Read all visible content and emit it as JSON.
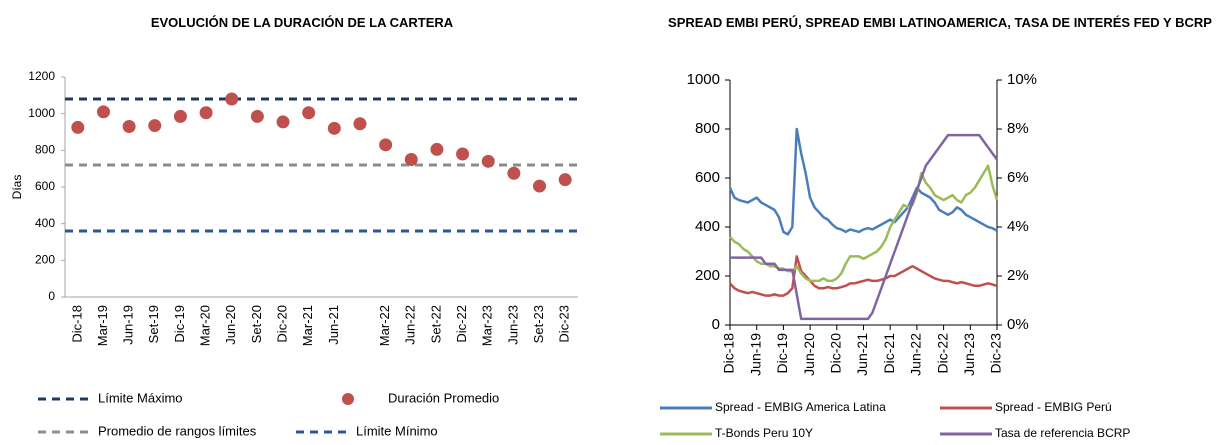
{
  "chart_data": [
    {
      "type": "scatter",
      "title": "EVOLUCIÓN DE LA DURACIÓN DE LA CARTERA",
      "y_label": "Días",
      "categories": [
        "Dic-18",
        "Mar-19",
        "Jun-19",
        "Set-19",
        "Dic-19",
        "Mar-20",
        "Jun-20",
        "Set-20",
        "Dic-20",
        "Mar-21",
        "Jun-21",
        null,
        "Mar-22",
        "Jun-22",
        "Set-22",
        "Dic-22",
        "Mar-23",
        "Jun-23",
        "Set-23",
        "Dic-23"
      ],
      "series": [
        {
          "name": "Duración Promedio",
          "color": "#c0504d",
          "values": [
            925,
            1010,
            930,
            935,
            985,
            1005,
            1080,
            985,
            955,
            1005,
            920,
            945,
            830,
            750,
            805,
            780,
            740,
            675,
            605,
            640
          ]
        }
      ],
      "reference_lines": [
        {
          "name": "Límite Máximo",
          "value": 1080,
          "color": "#1f3864"
        },
        {
          "name": "Promedio de rangos límites",
          "value": 720,
          "color": "#8c8c8c"
        },
        {
          "name": "Límite Mínimo",
          "value": 360,
          "color": "#2e5597"
        }
      ],
      "ylim": [
        0,
        1200
      ],
      "yticks": [
        0,
        200,
        400,
        600,
        800,
        1000,
        1200
      ],
      "grid": false
    },
    {
      "type": "line",
      "title": "SPREAD EMBI PERÚ, SPREAD EMBI LATINOAMERICA, TASA DE INTERÉS FED Y BCRP",
      "categories": [
        "Dic-18",
        null,
        null,
        null,
        null,
        null,
        "Jun-19",
        null,
        null,
        null,
        null,
        null,
        "Dic-19",
        null,
        null,
        null,
        null,
        null,
        "Jun-20",
        null,
        null,
        null,
        null,
        null,
        "Dic-20",
        null,
        null,
        null,
        null,
        null,
        "Jun-21",
        null,
        null,
        null,
        null,
        null,
        "Dic-21",
        null,
        null,
        null,
        null,
        null,
        "Jun-22",
        null,
        null,
        null,
        null,
        null,
        "Dic-22",
        null,
        null,
        null,
        null,
        null,
        "Jun-23",
        null,
        null,
        null,
        null,
        null,
        "Dic-23"
      ],
      "series": [
        {
          "name": "Spread - EMBIG America Latina",
          "color": "#4a7ebb",
          "values": [
            560,
            520,
            510,
            505,
            500,
            510,
            520,
            500,
            490,
            480,
            470,
            440,
            380,
            370,
            400,
            800,
            700,
            620,
            520,
            480,
            460,
            440,
            430,
            410,
            395,
            390,
            380,
            390,
            385,
            380,
            390,
            395,
            390,
            400,
            410,
            420,
            430,
            420,
            440,
            460,
            480,
            520,
            560,
            540,
            530,
            520,
            500,
            470,
            460,
            450,
            460,
            480,
            470,
            450,
            440,
            430,
            420,
            410,
            400,
            395,
            385
          ]
        },
        {
          "name": "Spread - EMBIG Perú",
          "color": "#c0504d",
          "values": [
            170,
            150,
            140,
            135,
            130,
            135,
            130,
            125,
            120,
            120,
            125,
            120,
            120,
            130,
            150,
            280,
            220,
            200,
            180,
            160,
            150,
            150,
            155,
            150,
            150,
            155,
            160,
            170,
            170,
            175,
            180,
            185,
            180,
            180,
            185,
            190,
            200,
            200,
            210,
            220,
            230,
            240,
            230,
            220,
            210,
            200,
            190,
            185,
            180,
            180,
            175,
            170,
            175,
            170,
            165,
            160,
            160,
            165,
            170,
            165,
            160
          ]
        },
        {
          "name": "T-Bonds Peru 10Y",
          "color": "#9bbb59",
          "axis": "y2",
          "values": [
            3.6,
            3.4,
            3.3,
            3.1,
            3.0,
            2.8,
            2.6,
            2.5,
            2.5,
            2.4,
            2.4,
            2.3,
            2.3,
            2.2,
            2.2,
            2.4,
            2.1,
            1.9,
            1.8,
            1.8,
            1.8,
            1.9,
            1.8,
            1.8,
            1.9,
            2.1,
            2.5,
            2.8,
            2.8,
            2.8,
            2.7,
            2.8,
            2.9,
            3.0,
            3.2,
            3.5,
            4.0,
            4.3,
            4.6,
            4.9,
            4.8,
            4.9,
            5.4,
            6.2,
            5.8,
            5.6,
            5.3,
            5.2,
            5.1,
            5.2,
            5.3,
            5.1,
            5.0,
            5.3,
            5.4,
            5.6,
            5.9,
            6.2,
            6.5,
            5.7,
            5.1
          ]
        },
        {
          "name": "Tasa de referencia BCRP",
          "color": "#8064a2",
          "axis": "y2",
          "values": [
            2.75,
            2.75,
            2.75,
            2.75,
            2.75,
            2.75,
            2.75,
            2.75,
            2.5,
            2.5,
            2.5,
            2.25,
            2.25,
            2.25,
            2.25,
            1.25,
            0.25,
            0.25,
            0.25,
            0.25,
            0.25,
            0.25,
            0.25,
            0.25,
            0.25,
            0.25,
            0.25,
            0.25,
            0.25,
            0.25,
            0.25,
            0.25,
            0.5,
            1.0,
            1.5,
            2.0,
            2.5,
            3.0,
            3.5,
            4.0,
            4.5,
            5.0,
            5.5,
            6.0,
            6.5,
            6.75,
            7.0,
            7.25,
            7.5,
            7.75,
            7.75,
            7.75,
            7.75,
            7.75,
            7.75,
            7.75,
            7.75,
            7.5,
            7.25,
            7.0,
            6.75
          ]
        }
      ],
      "ylim": [
        0,
        1000
      ],
      "yticks": [
        0,
        200,
        400,
        600,
        800,
        1000
      ],
      "y2lim": [
        0,
        10
      ],
      "y2ticks": [
        {
          "value": 0,
          "label": "0%"
        },
        {
          "value": 2,
          "label": "2%"
        },
        {
          "value": 4,
          "label": "4%"
        },
        {
          "value": 6,
          "label": "6%"
        },
        {
          "value": 8,
          "label": "8%"
        },
        {
          "value": 10,
          "label": "10%"
        }
      ],
      "grid": false
    }
  ]
}
